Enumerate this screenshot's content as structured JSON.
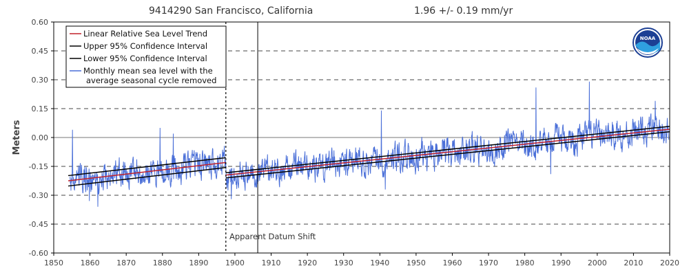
{
  "chart_data": {
    "type": "line",
    "station_title": "9414290 San Francisco, California",
    "trend_label": "1.96 +/-  0.19 mm/yr",
    "ylabel": "Meters",
    "xlabel": "",
    "xlim": [
      1850,
      2020
    ],
    "ylim": [
      -0.6,
      0.6
    ],
    "x_ticks": [
      1850,
      1860,
      1870,
      1880,
      1890,
      1900,
      1910,
      1920,
      1930,
      1940,
      1950,
      1960,
      1970,
      1980,
      1990,
      2000,
      2010,
      2020
    ],
    "y_ticks": [
      {
        "value": 0.6,
        "label": "0.60"
      },
      {
        "value": 0.45,
        "label": "0.45"
      },
      {
        "value": 0.3,
        "label": "0.30"
      },
      {
        "value": 0.15,
        "label": "0.15"
      },
      {
        "value": 0.0,
        "label": "0.00"
      },
      {
        "value": -0.15,
        "label": "-0.15"
      },
      {
        "value": -0.3,
        "label": "-0.30"
      },
      {
        "value": -0.45,
        "label": "-0.45"
      },
      {
        "value": -0.6,
        "label": "-0.60"
      }
    ],
    "grid": "horizontal-dashed",
    "legend": {
      "position": "top-left",
      "items": [
        {
          "name": "Linear Relative Sea Level Trend",
          "color": "#c0202a"
        },
        {
          "name": "Upper 95% Confidence Interval",
          "color": "#000000"
        },
        {
          "name": "Lower 95% Confidence Interval",
          "color": "#000000"
        },
        {
          "name": "Monthly mean sea level with the",
          "name2": "average seasonal cycle removed",
          "color": "#4a6fd8"
        }
      ]
    },
    "segments": [
      {
        "x_start": 1854,
        "x_end": 1897.5,
        "trend": [
          -0.225,
          -0.13
        ],
        "upper": [
          -0.198,
          -0.105
        ],
        "lower": [
          -0.252,
          -0.156
        ]
      },
      {
        "x_start": 1897.5,
        "x_end": 2020,
        "trend": [
          -0.195,
          0.043
        ],
        "upper": [
          -0.183,
          0.058
        ],
        "lower": [
          -0.21,
          0.03
        ]
      }
    ],
    "datum_shift": {
      "x": 1897.5,
      "label": "Apparent Datum Shift"
    },
    "event_line": {
      "x": 1906.3
    },
    "monthly_series": {
      "name": "Monthly mean sea level with the average seasonal cycle removed",
      "x_start": 1854.5,
      "x_end": 2019.8,
      "noise_amplitude": 0.055,
      "peaks": [
        {
          "x": 1855.2,
          "value": 0.04
        },
        {
          "x": 1859.8,
          "value": -0.33
        },
        {
          "x": 1862.2,
          "value": -0.36
        },
        {
          "x": 1879.3,
          "value": 0.05
        },
        {
          "x": 1883.0,
          "value": 0.02
        },
        {
          "x": 1899.0,
          "value": -0.32
        },
        {
          "x": 1940.4,
          "value": 0.14
        },
        {
          "x": 1941.5,
          "value": -0.27
        },
        {
          "x": 1983.1,
          "value": 0.26
        },
        {
          "x": 1987.2,
          "value": -0.19
        },
        {
          "x": 1997.8,
          "value": 0.29
        },
        {
          "x": 2016.0,
          "value": 0.19
        }
      ],
      "color": "#4a6fd8"
    },
    "logo": {
      "text": "NOAA",
      "position": "top-right"
    }
  }
}
